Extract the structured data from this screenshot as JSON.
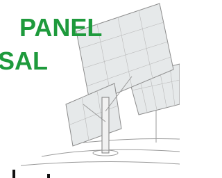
{
  "header": {
    "line1": "PANEL",
    "line2": "SAL"
  }
}
